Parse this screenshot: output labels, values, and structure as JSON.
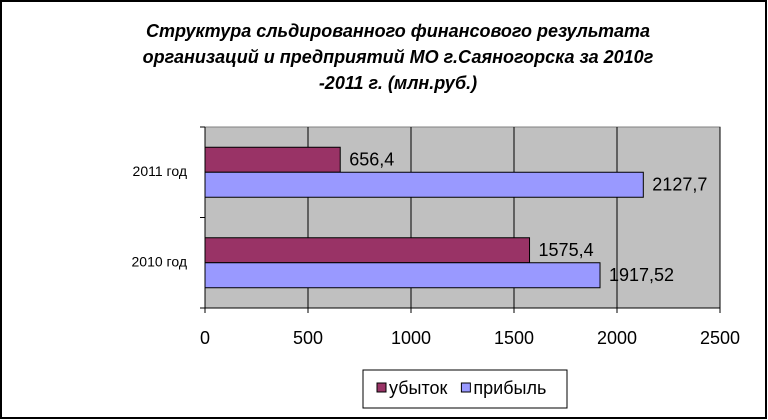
{
  "chart_data": {
    "type": "hbar",
    "title": [
      "Структура сльдированного финансового результата",
      "организаций и предприятий МО г.Саяногорска за  2010г",
      "-2011 г. (млн.руб.)"
    ],
    "categories": [
      "2011 год",
      "2010 год"
    ],
    "series": [
      {
        "name": "убыток",
        "color": "#993366",
        "values": [
          656.4,
          1575.4
        ],
        "value_labels": [
          "656,4",
          "1575,4"
        ]
      },
      {
        "name": "прибыль",
        "color": "#9999ff",
        "values": [
          2127.7,
          1917.52
        ],
        "value_labels": [
          "2127,7",
          "1917,52"
        ]
      }
    ],
    "xlim": [
      0,
      2500
    ],
    "xticks": [
      0,
      500,
      1000,
      1500,
      2000,
      2500
    ],
    "grid": true
  }
}
